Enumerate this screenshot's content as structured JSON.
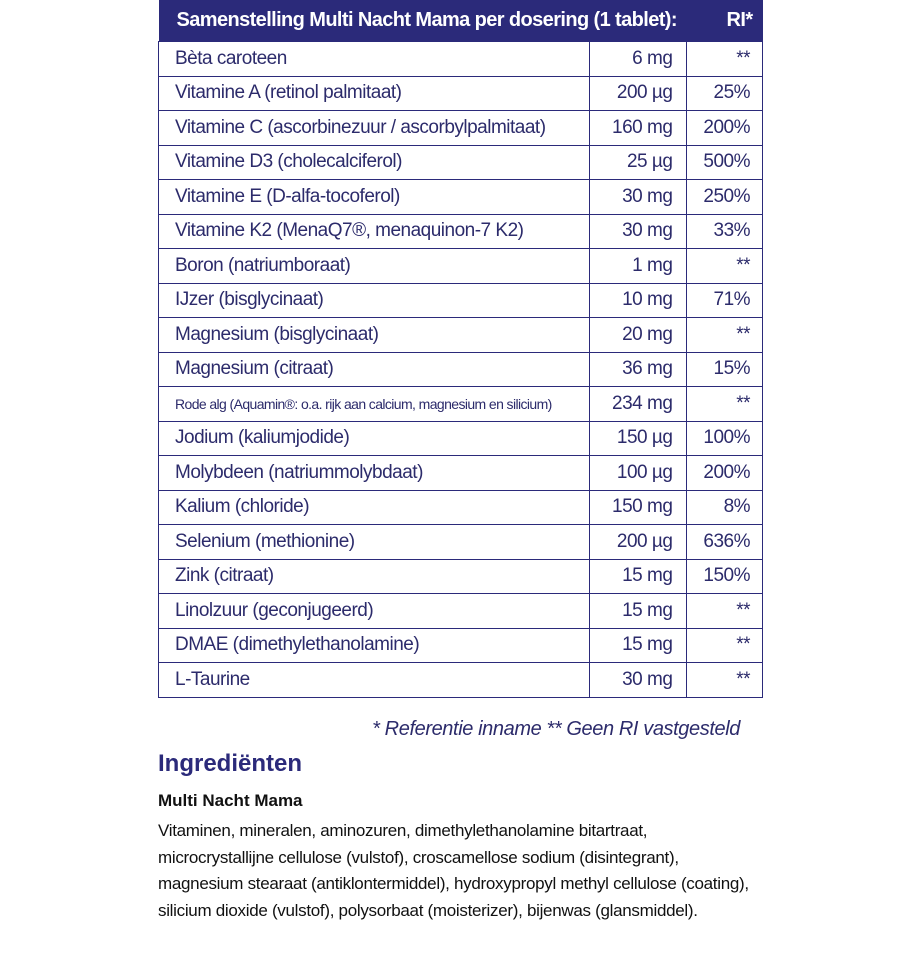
{
  "table": {
    "header": "Samenstelling Multi Nacht Mama per dosering (1 tablet):",
    "header_ri": "RI*",
    "rows": [
      {
        "name": "Bèta caroteen",
        "amount": "6 mg",
        "ri": "**"
      },
      {
        "name": "Vitamine A (retinol palmitaat)",
        "amount": "200 µg",
        "ri": "25%"
      },
      {
        "name": "Vitamine C (ascorbinezuur / ascorbylpalmitaat)",
        "amount": "160 mg",
        "ri": "200%"
      },
      {
        "name": "Vitamine D3 (cholecalciferol)",
        "amount": "25 µg",
        "ri": "500%"
      },
      {
        "name": "Vitamine E (D-alfa-tocoferol)",
        "amount": "30 mg",
        "ri": "250%"
      },
      {
        "name": "Vitamine K2 (MenaQ7®, menaquinon-7 K2)",
        "amount": "30 mg",
        "ri": "33%"
      },
      {
        "name": "Boron (natriumboraat)",
        "amount": "1 mg",
        "ri": "**"
      },
      {
        "name": "IJzer (bisglycinaat)",
        "amount": "10 mg",
        "ri": "71%"
      },
      {
        "name": "Magnesium (bisglycinaat)",
        "amount": "20 mg",
        "ri": "**"
      },
      {
        "name": "Magnesium (citraat)",
        "amount": "36 mg",
        "ri": "15%"
      },
      {
        "name": "Rode alg (Aquamin®: o.a. rijk aan calcium, magnesium en silicium)",
        "amount": "234 mg",
        "ri": "**"
      },
      {
        "name": "Jodium (kaliumjodide)",
        "amount": "150 µg",
        "ri": "100%"
      },
      {
        "name": "Molybdeen (natriummolybdaat)",
        "amount": "100 µg",
        "ri": "200%"
      },
      {
        "name": "Kalium (chloride)",
        "amount": "150 mg",
        "ri": "8%"
      },
      {
        "name": "Selenium (methionine)",
        "amount": "200 µg",
        "ri": "636%"
      },
      {
        "name": "Zink (citraat)",
        "amount": "15 mg",
        "ri": "150%"
      },
      {
        "name": "Linolzuur (geconjugeerd)",
        "amount": "15 mg",
        "ri": "**"
      },
      {
        "name": "DMAE (dimethylethanolamine)",
        "amount": "15 mg",
        "ri": "**"
      },
      {
        "name": "L-Taurine",
        "amount": "30 mg",
        "ri": "**"
      }
    ]
  },
  "footnote": "* Referentie inname  ** Geen RI vastgesteld",
  "ingredients": {
    "title": "Ingrediënten",
    "product": "Multi Nacht Mama",
    "text": "Vitaminen, mineralen, aminozuren, dimethylethanolamine bitartraat, microcrystallijne cellulose (vulstof), croscamellose sodium (disintegrant), magnesium stearaat (antiklontermiddel), hydroxypropyl methyl cellulose (coating), silicium dioxide (vulstof),  polysorbaat (moisterizer), bijenwas (glansmiddel)."
  },
  "colors": {
    "brand": "#2b2a7a"
  }
}
